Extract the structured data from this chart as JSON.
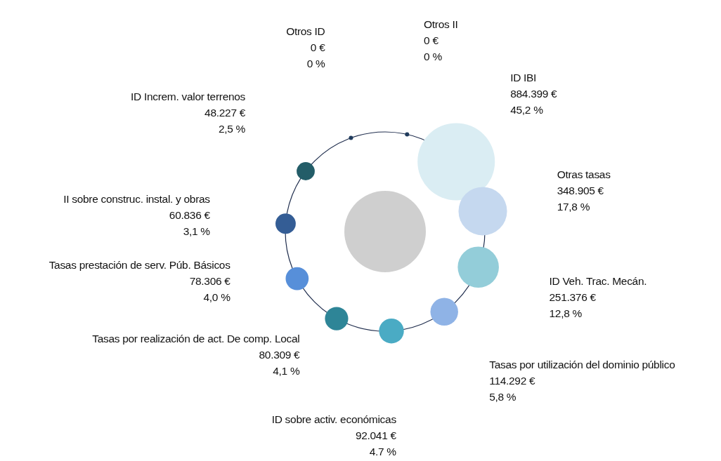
{
  "chart_data": {
    "type": "other",
    "categories": [
      "Otros ID",
      "Otros II",
      "ID IBI",
      "Otras tasas",
      "ID Veh. Trac. Mecán.",
      "Tasas por utilización del dominio público",
      "ID sobre activ. económicas",
      "Tasas por realización de act. De comp. Local",
      "Tasas prestación de serv. Púb. Básicos",
      "II sobre construc. instal. y obras",
      "ID Increm. valor terrenos"
    ],
    "colors": [
      "#1f3b5c",
      "#1f3b5c",
      "#daedf3",
      "#c5d8ef",
      "#93cdd9",
      "#8fb3e6",
      "#4aabc4",
      "#2e8597",
      "#578fd9",
      "#345d95",
      "#235d68"
    ],
    "series": [
      {
        "values": [
          0,
          0,
          884399,
          348905,
          251376,
          114292,
          92041,
          80309,
          78306,
          60836,
          48227
        ],
        "value_labels": [
          "0 €",
          "0 €",
          "884.399 €",
          "348.905 €",
          "251.376 €",
          "114.292 €",
          "92.041 €",
          "80.309 €",
          "78.306 €",
          "60.836 €",
          "48.227 €"
        ]
      },
      {
        "values": [
          0,
          0,
          45.2,
          17.8,
          12.8,
          5.8,
          4.7,
          4.1,
          4.0,
          3.1,
          2.5
        ],
        "value_labels": [
          "0 %",
          "0 %",
          "45,2 %",
          "17,8 %",
          "12,8 %",
          "5,8 %",
          "4.7 %",
          "4,1 %",
          "4,0 %",
          "3,1 %",
          "2,5 %"
        ]
      }
    ]
  }
}
